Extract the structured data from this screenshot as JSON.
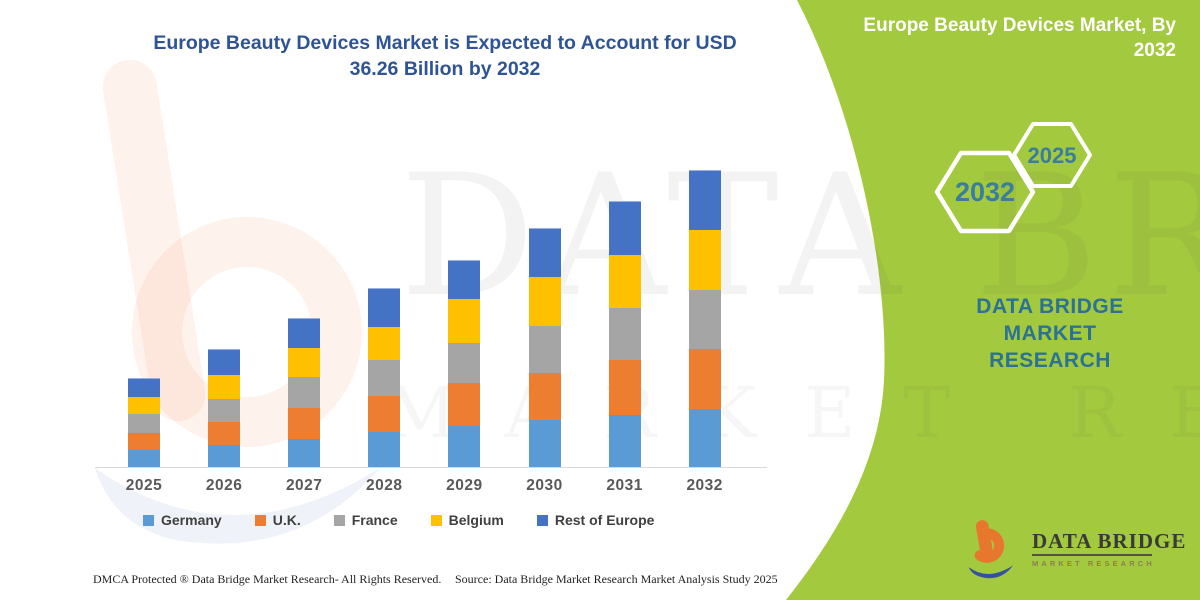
{
  "page": {
    "background_color": "#FFFFFF",
    "accent_green": "#A3C93E",
    "title_color": "#2F5496",
    "brand_teal": "#2B7294"
  },
  "title": {
    "line1": "Europe Beauty Devices Market is Expected to Account for USD",
    "line2": "36.26 Billion by 2032"
  },
  "chart_data": {
    "type": "bar",
    "stacked": true,
    "title": "Europe Beauty Devices Market is Expected to Account for USD 36.26 Billion by 2032",
    "unit": "USD Billion",
    "categories": [
      "2025",
      "2026",
      "2027",
      "2028",
      "2029",
      "2030",
      "2031",
      "2032"
    ],
    "series": [
      {
        "name": "Germany",
        "color": "#5B9BD5",
        "values": [
          2.2,
          2.8,
          3.5,
          4.4,
          5.1,
          5.9,
          6.5,
          7.2
        ]
      },
      {
        "name": "U.K.",
        "color": "#ED7D31",
        "values": [
          2.1,
          2.8,
          3.8,
          4.4,
          5.3,
          5.7,
          6.7,
          7.3
        ]
      },
      {
        "name": "France",
        "color": "#A5A5A5",
        "values": [
          2.3,
          2.8,
          3.8,
          4.4,
          4.8,
          5.7,
          6.3,
          7.2
        ]
      },
      {
        "name": "Belgium",
        "color": "#FFC000",
        "values": [
          2.0,
          3.0,
          3.5,
          4.0,
          5.4,
          6.0,
          6.5,
          7.3
        ]
      },
      {
        "name": "Rest of Europe",
        "color": "#4472C4",
        "values": [
          2.3,
          3.0,
          3.6,
          4.6,
          4.6,
          5.8,
          6.5,
          7.26
        ]
      }
    ],
    "estimated_totals": [
      10.9,
      14.4,
      18.2,
      21.8,
      25.2,
      29.1,
      32.5,
      36.26
    ],
    "highlight_value": "USD 36.26 Billion by 2032",
    "ylim": [
      0,
      40
    ],
    "grid": false,
    "y_axis_visible": false,
    "legend_position": "bottom"
  },
  "side_panel": {
    "header_line1": "Europe Beauty Devices Market, By",
    "header_line2": "2032",
    "hexagon_back_label": "2032",
    "hexagon_front_label": "2025",
    "brand_line1": "DATA BRIDGE MARKET",
    "brand_line2": "RESEARCH",
    "logo_wordmark": "DATA BRIDGE",
    "logo_subtext": "MARKET RESEARCH"
  },
  "watermark": {
    "row1": "DATA BRIDGE",
    "row2": "MARKET RESEARCH"
  },
  "footer": {
    "left": "DMCA Protected ® Data Bridge Market Research-  All Rights Reserved.",
    "right": "Source: Data Bridge Market Research  Market Analysis Study 2025"
  }
}
